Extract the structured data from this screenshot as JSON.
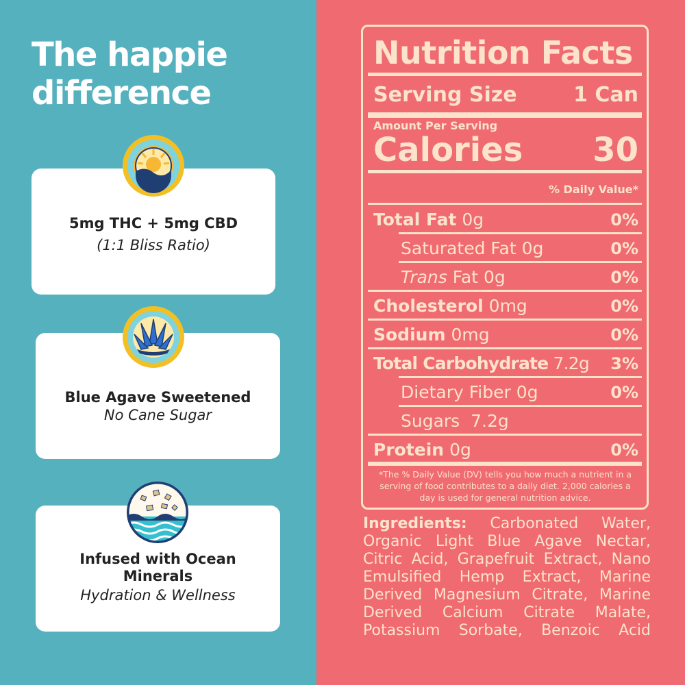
{
  "headline": {
    "line1": "The happie",
    "line2": "difference"
  },
  "features": [
    {
      "title": "5mg THC + 5mg CBD",
      "subtitle": "(1:1 Bliss Ratio)",
      "icon": "sun-icon"
    },
    {
      "title": "Blue Agave Sweetened",
      "subtitle": "No Cane Sugar",
      "icon": "agave-icon"
    },
    {
      "title": "Infused with Ocean Minerals",
      "subtitle": "Hydration & Wellness",
      "icon": "ocean-icon"
    }
  ],
  "nutrition": {
    "title": "Nutrition Facts",
    "serving_label": "Serving Size",
    "serving_value": "1 Can",
    "amount_per_serving": "Amount Per Serving",
    "calories_label": "Calories",
    "calories_value": "30",
    "daily_value_header": "% Daily Value*",
    "rows": [
      {
        "label": "Total Fat",
        "amount": "0g",
        "pct": "0%"
      },
      {
        "label": "Saturated Fat",
        "amount": "0g",
        "pct": "0%"
      },
      {
        "label": "Trans",
        "label_rest": "Fat",
        "amount": "0g",
        "pct": "0%"
      },
      {
        "label": "Cholesterol",
        "amount": "0mg",
        "pct": "0%"
      },
      {
        "label": "Sodium",
        "amount": "0mg",
        "pct": "0%"
      },
      {
        "label": "Total Carbohydrate",
        "amount": "7.2g",
        "pct": "3%"
      },
      {
        "label": "Dietary Fiber",
        "amount": "0g",
        "pct": "0%"
      },
      {
        "label": "Sugars",
        "amount": "7.2g",
        "pct": ""
      },
      {
        "label": "Protein",
        "amount": "0g",
        "pct": "0%"
      }
    ],
    "footnote": "*The % Daily Value (DV) tells you how much a nutrient in a serving of food contributes to a daily diet. 2,000 calories a day is used for general nutrition advice."
  },
  "ingredients": {
    "label": "Ingredients:",
    "text": "Carbonated Water, Organic Light Blue Agave Nectar, Citric Acid, Grapefruit Extract, Nano Emulsified Hemp Extract, Marine Derived Magnesium Citrate, Marine Derived Calcium Citrate Malate, Potassium Sorbate, Benzoic Acid"
  },
  "colors": {
    "teal": "#55b1bd",
    "coral": "#f06a71",
    "cream": "#fbe3cc",
    "navy": "#1f3f73",
    "gold": "#f2c025"
  }
}
